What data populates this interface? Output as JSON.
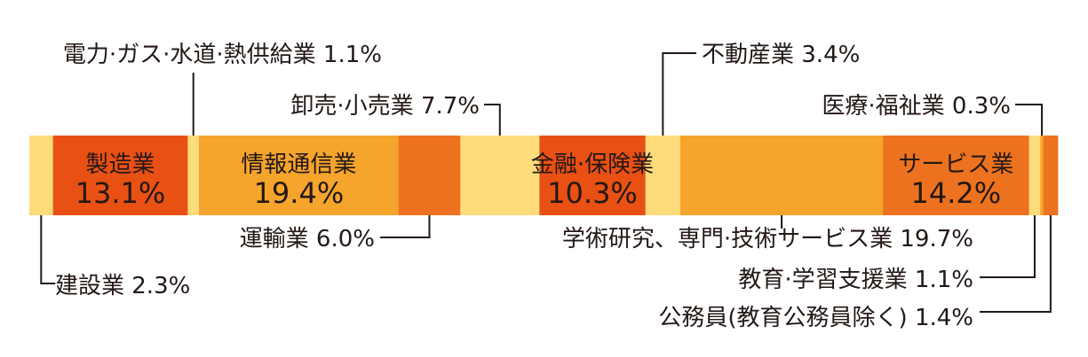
{
  "chart_data": {
    "type": "stacked-bar-100",
    "title": "",
    "unit": "%",
    "segments": [
      {
        "name": "建設業",
        "value": 2.3,
        "value_label": "2.3%",
        "color": "#fedb7b"
      },
      {
        "name": "製造業",
        "value": 13.1,
        "value_label": "13.1%",
        "color": "#e85014"
      },
      {
        "name": "電力·ガス·水道·熱供給業",
        "value": 1.1,
        "value_label": "1.1%",
        "color": "#fedb7b"
      },
      {
        "name": "情報通信業",
        "value": 19.4,
        "value_label": "19.4%",
        "color": "#f5a42c"
      },
      {
        "name": "運輸業",
        "value": 6.0,
        "value_label": "6.0%",
        "color": "#ec7220"
      },
      {
        "name": "卸売·小売業",
        "value": 7.7,
        "value_label": "7.7%",
        "color": "#fedb7b"
      },
      {
        "name": "金融·保険業",
        "value": 10.3,
        "value_label": "10.3%",
        "color": "#e85014"
      },
      {
        "name": "不動産業",
        "value": 3.4,
        "value_label": "3.4%",
        "color": "#fedb7b"
      },
      {
        "name": "学術研究、専門·技術サービス業",
        "value": 19.7,
        "value_label": "19.7%",
        "color": "#f5a42c"
      },
      {
        "name": "サービス業",
        "value": 14.2,
        "value_label": "14.2%",
        "color": "#ec7220"
      },
      {
        "name": "教育·学習支援業",
        "value": 1.1,
        "value_label": "1.1%",
        "color": "#fedb7b"
      },
      {
        "name": "医療·福祉業",
        "value": 0.3,
        "value_label": "0.3%",
        "color": "#f5a42c"
      },
      {
        "name": "公務員(教育公務員除く)",
        "value": 1.4,
        "value_label": "1.4%",
        "color": "#ec7220"
      }
    ]
  }
}
